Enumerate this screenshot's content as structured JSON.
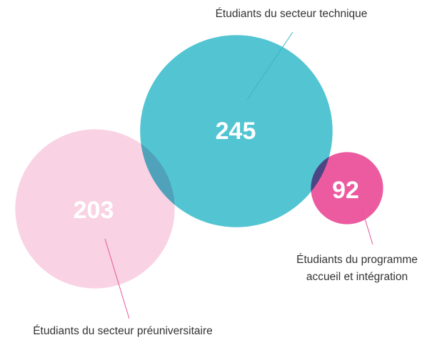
{
  "chart_data": {
    "type": "bubble",
    "series": [
      {
        "name_lines": [
          "Étudiants du secteur préuniversitaire"
        ],
        "color": "#f9d3e3",
        "value": 203
      },
      {
        "name_lines": [
          "Étudiants du secteur technique"
        ],
        "color": "#52c4d2",
        "value": 245
      },
      {
        "name_lines": [
          "Étudiants du programme",
          "accueil et intégration"
        ],
        "color": "#ec5aa0",
        "value": 92
      }
    ]
  }
}
